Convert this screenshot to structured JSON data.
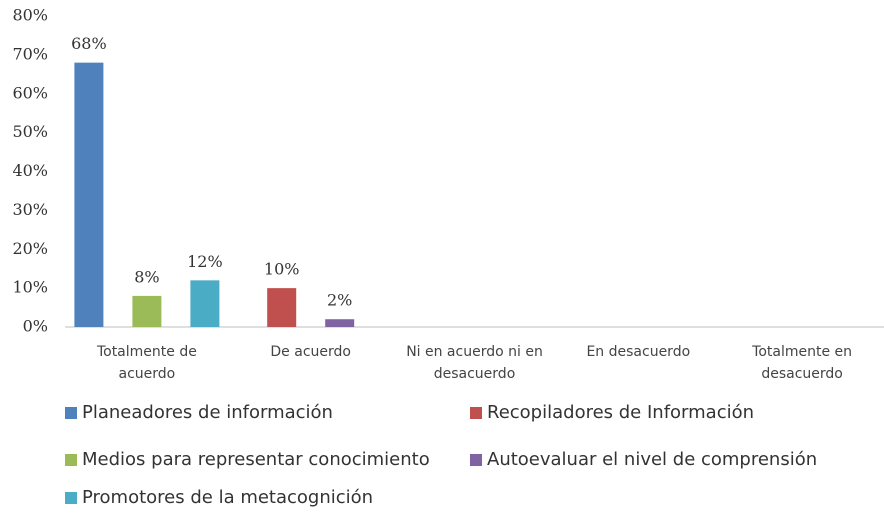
{
  "chart_data": {
    "type": "bar",
    "categories": [
      "Totalmente de acuerdo",
      "De acuerdo",
      "Ni en acuerdo ni en desacuerdo",
      "En desacuerdo",
      "Totalmente en desacuerdo"
    ],
    "series": [
      {
        "name": "Planeadores de información",
        "color": "#4f81bd",
        "values": [
          68,
          null,
          null,
          null,
          null
        ],
        "value_labels": [
          "68%",
          null,
          null,
          null,
          null
        ]
      },
      {
        "name": "Recopiladores de Información",
        "color": "#c0504d",
        "values": [
          null,
          10,
          null,
          null,
          null
        ],
        "value_labels": [
          null,
          "10%",
          null,
          null,
          null
        ]
      },
      {
        "name": "Medios para representar conocimiento",
        "color": "#9bbb59",
        "values": [
          8,
          null,
          null,
          null,
          null
        ],
        "value_labels": [
          "8%",
          null,
          null,
          null,
          null
        ]
      },
      {
        "name": "Autoevaluar el nivel de comprensión",
        "color": "#8064a2",
        "values": [
          null,
          2,
          null,
          null,
          null
        ],
        "value_labels": [
          null,
          "2%",
          null,
          null,
          null
        ]
      },
      {
        "name": "Promotores de la metacognición",
        "color": "#4bacc6",
        "values": [
          12,
          null,
          null,
          null,
          null
        ],
        "value_labels": [
          "12%",
          null,
          null,
          null,
          null
        ]
      }
    ],
    "ylim": [
      0,
      80
    ],
    "yticks": [
      {
        "value": 0,
        "label": "0%"
      },
      {
        "value": 10,
        "label": "10%"
      },
      {
        "value": 20,
        "label": "20%"
      },
      {
        "value": 30,
        "label": "30%"
      },
      {
        "value": 40,
        "label": "40%"
      },
      {
        "value": 50,
        "label": "50%"
      },
      {
        "value": 60,
        "label": "60%"
      },
      {
        "value": 70,
        "label": "70%"
      },
      {
        "value": 80,
        "label": "80%"
      }
    ],
    "grid": false,
    "legend": "bottom"
  }
}
